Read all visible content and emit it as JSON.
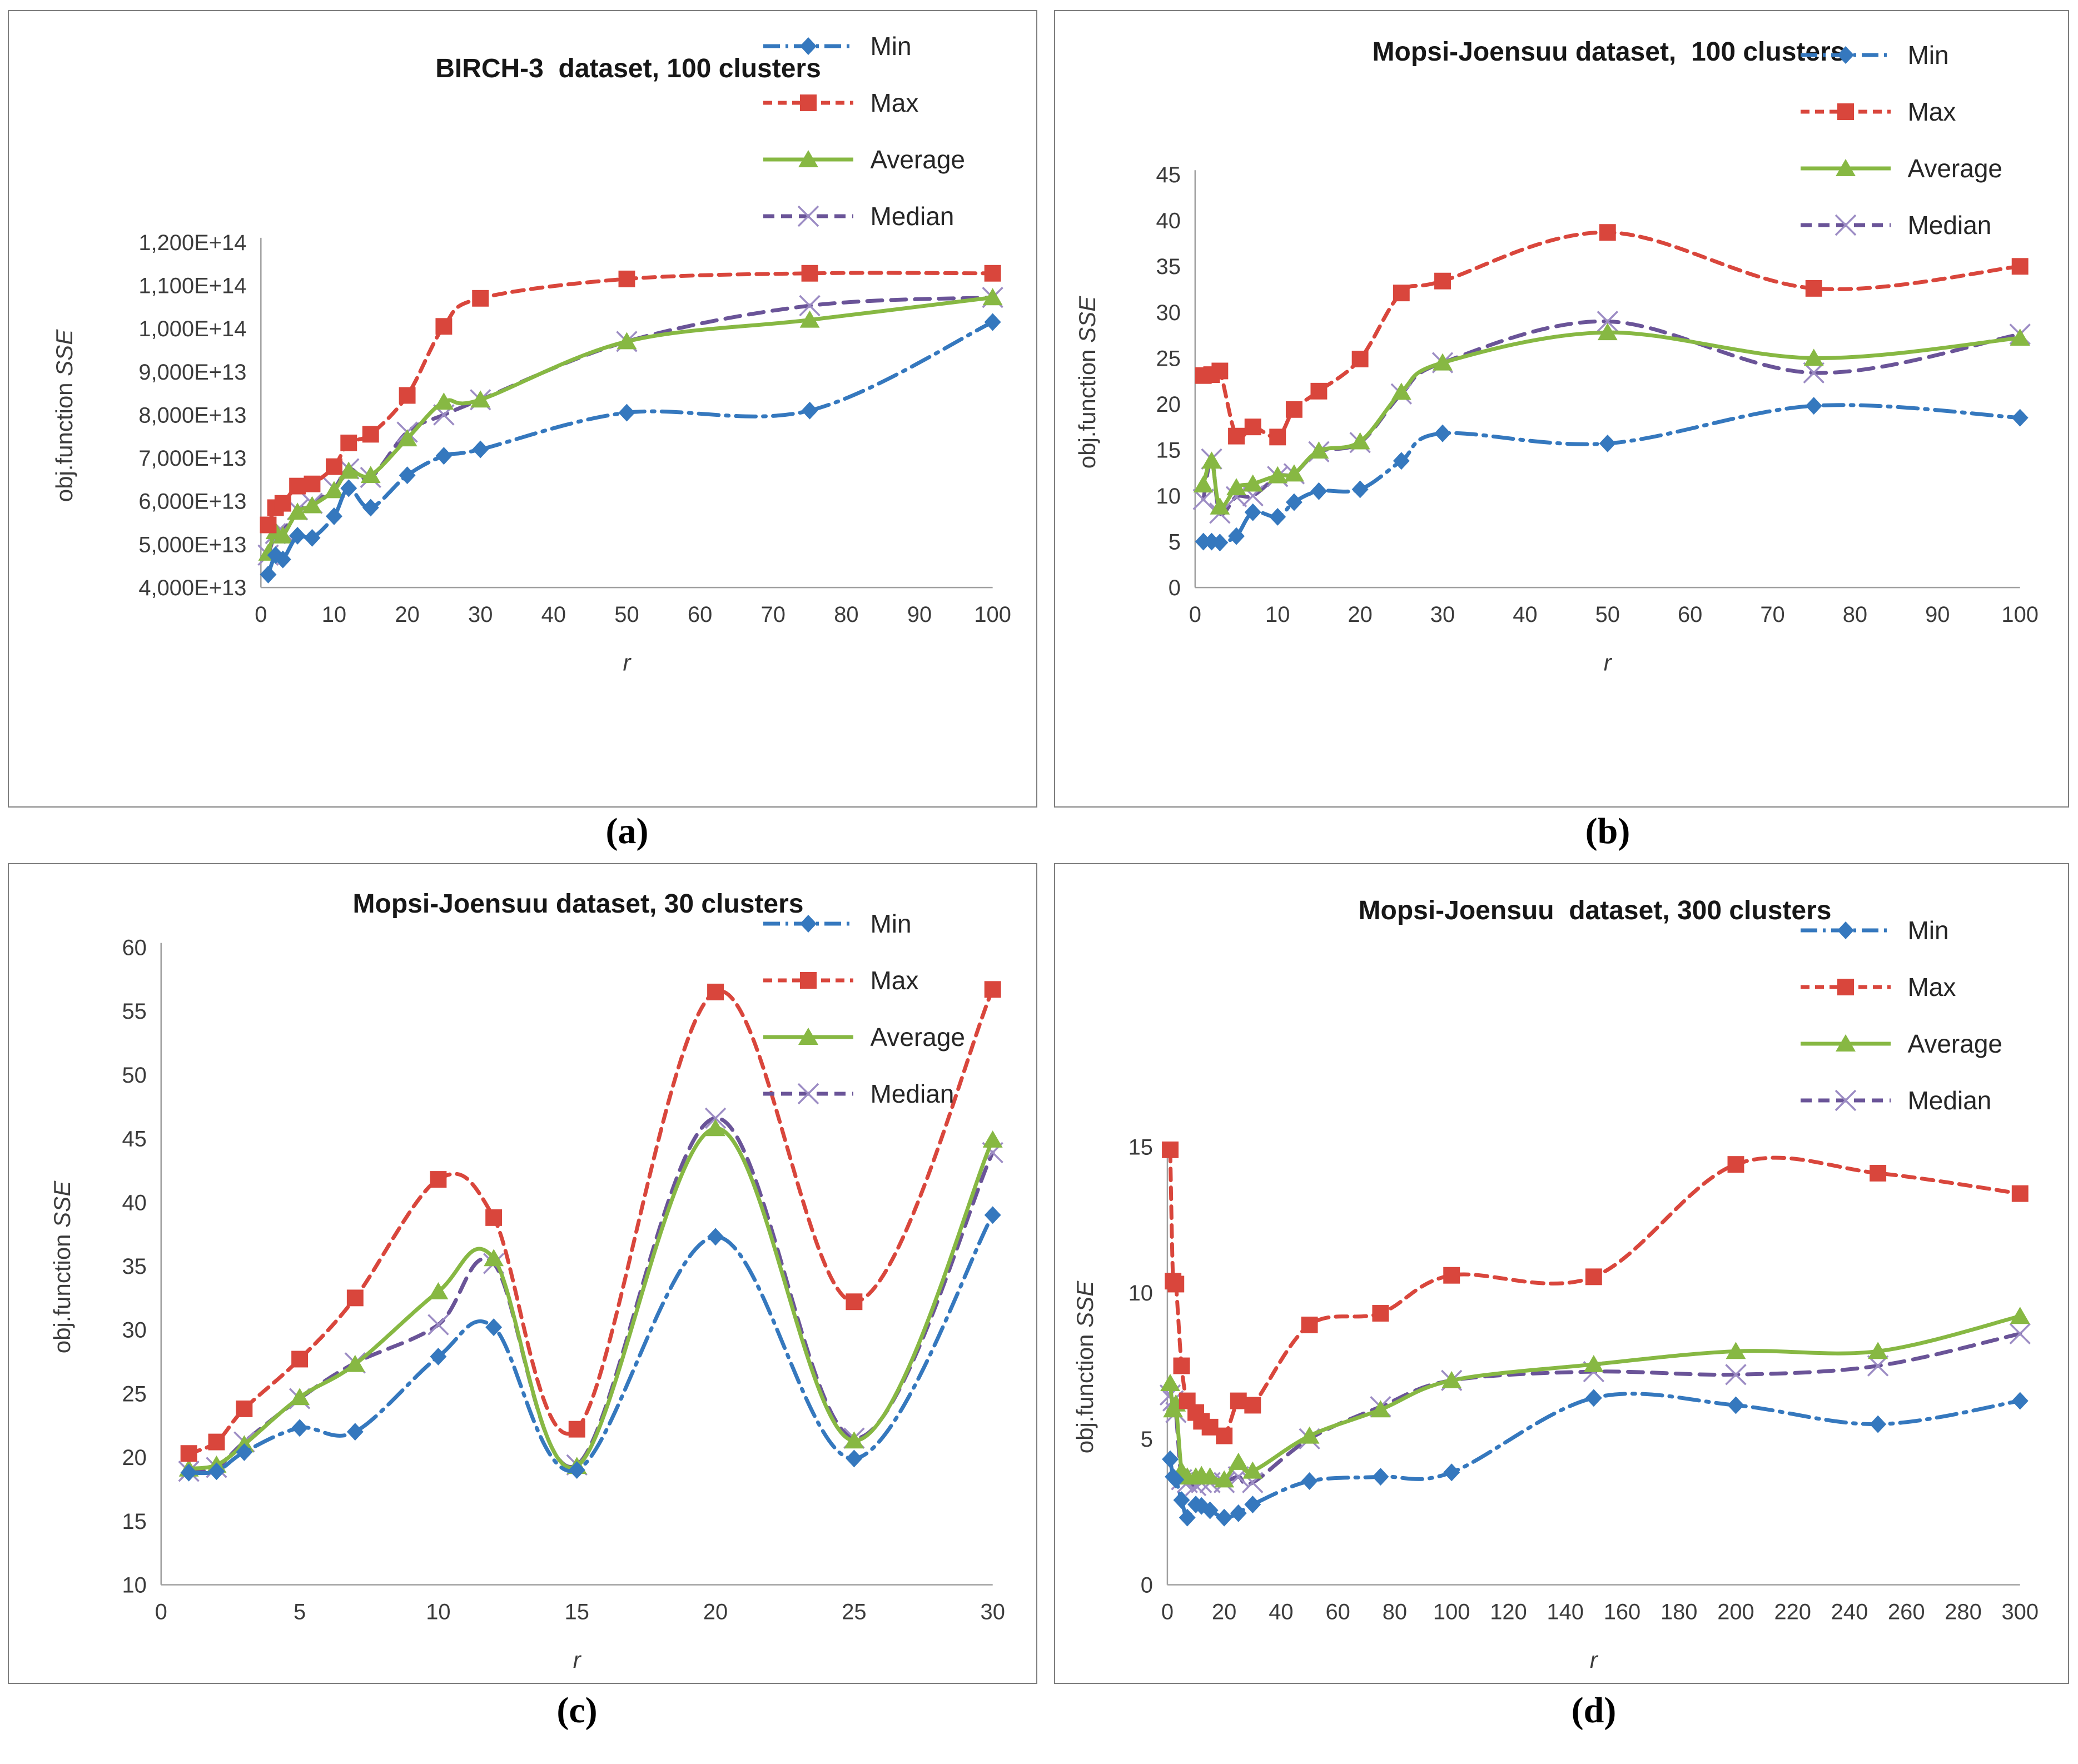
{
  "figure": {
    "background": "#ffffff",
    "panel_border_color": "#7e7e7e",
    "axis_color": "#a0a0a0",
    "tick_color": "#3c3c3c",
    "ylabel": {
      "main": "obj.function ",
      "italic": "SSE"
    },
    "xlabel": "r"
  },
  "legend": {
    "position": "top-right",
    "items": [
      {
        "label": "Min",
        "series": "Min"
      },
      {
        "label": "Max",
        "series": "Max"
      },
      {
        "label": "Average",
        "series": "Average"
      },
      {
        "label": "Median",
        "series": "Median"
      }
    ]
  },
  "series_styles": {
    "Min": {
      "color": "#3578BE",
      "marker": "diamond",
      "dash": "dashdot"
    },
    "Max": {
      "color": "#D9463C",
      "marker": "square",
      "dash": "dashed"
    },
    "Average": {
      "color": "#87B843",
      "marker": "triangle",
      "dash": "solid"
    },
    "Median": {
      "color": "#6A5498",
      "marker": "xcross",
      "dash": "dashed-med",
      "marker_color": "#9C8CC4"
    }
  },
  "chart_data": [
    {
      "id": "a",
      "type": "line",
      "caption": "(a)",
      "title": "BIRCH-3  dataset, 100 clusters",
      "xlabel": "r",
      "ylabel": "obj.function SSE",
      "grid": false,
      "legend_position": "top-right",
      "xlim": [
        0,
        100
      ],
      "x_ticks": [
        0,
        10,
        20,
        30,
        40,
        50,
        60,
        70,
        80,
        90,
        100
      ],
      "ylim": [
        40000000000000.0,
        120000000000000.0
      ],
      "y_ticks": [
        {
          "value": 40000000000000.0,
          "label": "4,000E+13"
        },
        {
          "value": 50000000000000.0,
          "label": "5,000E+13"
        },
        {
          "value": 60000000000000.0,
          "label": "6,000E+13"
        },
        {
          "value": 70000000000000.0,
          "label": "7,000E+13"
        },
        {
          "value": 80000000000000.0,
          "label": "8,000E+13"
        },
        {
          "value": 90000000000000.0,
          "label": "9,000E+13"
        },
        {
          "value": 100000000000000.0,
          "label": "1,000E+14"
        },
        {
          "value": 110000000000000.0,
          "label": "1,100E+14"
        },
        {
          "value": 120000000000000.0,
          "label": "1,200E+14"
        }
      ],
      "x": [
        1,
        2,
        3,
        5,
        7,
        10,
        12,
        15,
        20,
        25,
        30,
        50,
        75,
        100
      ],
      "series": [
        {
          "name": "Min",
          "values": [
            43000000000000.0,
            47500000000000.0,
            46500000000000.0,
            52000000000000.0,
            51500000000000.0,
            56500000000000.0,
            63000000000000.0,
            58500000000000.0,
            66000000000000.0,
            70500000000000.0,
            72000000000000.0,
            80500000000000.0,
            81000000000000.0,
            101500000000000.0
          ]
        },
        {
          "name": "Max",
          "values": [
            54500000000000.0,
            58500000000000.0,
            59500000000000.0,
            63500000000000.0,
            64000000000000.0,
            68000000000000.0,
            73500000000000.0,
            75500000000000.0,
            84500000000000.0,
            100500000000000.0,
            107000000000000.0,
            111500000000000.0,
            112800000000000.0,
            112800000000000.0
          ]
        },
        {
          "name": "Average",
          "values": [
            48000000000000.0,
            53000000000000.0,
            52000000000000.0,
            57500000000000.0,
            59000000000000.0,
            62500000000000.0,
            67000000000000.0,
            66000000000000.0,
            74500000000000.0,
            83000000000000.0,
            83500000000000.0,
            97000000000000.0,
            102000000000000.0,
            107200000000000.0
          ]
        },
        {
          "name": "Median",
          "values": [
            47500000000000.0,
            52500000000000.0,
            53000000000000.0,
            58000000000000.0,
            59500000000000.0,
            63000000000000.0,
            67500000000000.0,
            65500000000000.0,
            76000000000000.0,
            80000000000000.0,
            83500000000000.0,
            97000000000000.0,
            105300000000000.0,
            107200000000000.0
          ]
        }
      ]
    },
    {
      "id": "b",
      "type": "line",
      "caption": "(b)",
      "title": "Mopsi-Joensuu dataset,  100 clusters",
      "xlabel": "r",
      "ylabel": "obj.function SSE",
      "grid": false,
      "legend_position": "top-right",
      "xlim": [
        0,
        100
      ],
      "x_ticks": [
        0,
        10,
        20,
        30,
        40,
        50,
        60,
        70,
        80,
        90,
        100
      ],
      "ylim": [
        0,
        45
      ],
      "y_ticks": [
        {
          "value": 0,
          "label": "0"
        },
        {
          "value": 5,
          "label": "5"
        },
        {
          "value": 10,
          "label": "10"
        },
        {
          "value": 15,
          "label": "15"
        },
        {
          "value": 20,
          "label": "20"
        },
        {
          "value": 25,
          "label": "25"
        },
        {
          "value": 30,
          "label": "30"
        },
        {
          "value": 35,
          "label": "35"
        },
        {
          "value": 40,
          "label": "40"
        },
        {
          "value": 45,
          "label": "45"
        }
      ],
      "x": [
        1,
        2,
        3,
        5,
        7,
        10,
        12,
        15,
        20,
        25,
        30,
        50,
        75,
        100
      ],
      "series": [
        {
          "name": "Min",
          "values": [
            5.0,
            5.0,
            4.9,
            5.6,
            8.2,
            7.7,
            9.3,
            10.5,
            10.7,
            13.8,
            16.8,
            15.7,
            19.8,
            18.5
          ]
        },
        {
          "name": "Max",
          "values": [
            23.1,
            23.2,
            23.6,
            16.5,
            17.5,
            16.4,
            19.4,
            21.4,
            24.9,
            32.1,
            33.4,
            38.7,
            32.6,
            35.0
          ]
        },
        {
          "name": "Average",
          "values": [
            11.2,
            13.8,
            8.8,
            10.9,
            11.3,
            12.2,
            12.4,
            14.9,
            15.9,
            21.3,
            24.5,
            27.8,
            25.0,
            27.2
          ]
        },
        {
          "name": "Median",
          "values": [
            9.6,
            14.0,
            8.1,
            9.9,
            10.0,
            12.1,
            12.4,
            14.8,
            15.8,
            21.1,
            24.5,
            29.0,
            23.4,
            27.6
          ]
        }
      ]
    },
    {
      "id": "c",
      "type": "line",
      "caption": "(c)",
      "title": "Mopsi-Joensuu dataset, 30 clusters",
      "xlabel": "r",
      "ylabel": "obj.function SSE",
      "grid": false,
      "legend_position": "top-right",
      "xlim": [
        0,
        30
      ],
      "x_ticks": [
        0,
        5,
        10,
        15,
        20,
        25,
        30
      ],
      "ylim": [
        10,
        60
      ],
      "y_ticks": [
        {
          "value": 10,
          "label": "10"
        },
        {
          "value": 15,
          "label": "15"
        },
        {
          "value": 20,
          "label": "20"
        },
        {
          "value": 25,
          "label": "25"
        },
        {
          "value": 30,
          "label": "30"
        },
        {
          "value": 35,
          "label": "35"
        },
        {
          "value": 40,
          "label": "40"
        },
        {
          "value": 45,
          "label": "45"
        },
        {
          "value": 50,
          "label": "50"
        },
        {
          "value": 55,
          "label": "55"
        },
        {
          "value": 60,
          "label": "60"
        }
      ],
      "x": [
        1,
        2,
        3,
        5,
        7,
        10,
        12,
        15,
        20,
        25,
        30
      ],
      "series": [
        {
          "name": "Min",
          "values": [
            18.8,
            18.9,
            20.4,
            22.3,
            22.0,
            27.9,
            30.2,
            19.0,
            37.3,
            19.9,
            39.0
          ]
        },
        {
          "name": "Max",
          "values": [
            20.3,
            21.2,
            23.8,
            27.7,
            32.5,
            41.8,
            38.8,
            22.2,
            56.5,
            32.2,
            56.7
          ]
        },
        {
          "name": "Average",
          "values": [
            19.1,
            19.4,
            21.0,
            24.7,
            27.3,
            33.0,
            35.6,
            19.3,
            45.8,
            21.3,
            44.9
          ]
        },
        {
          "name": "Median",
          "values": [
            18.9,
            19.2,
            21.2,
            24.6,
            27.4,
            30.4,
            35.2,
            19.4,
            46.6,
            21.5,
            43.9
          ]
        }
      ]
    },
    {
      "id": "d",
      "type": "line",
      "caption": "(d)",
      "title": "Mopsi-Joensuu  dataset, 300 clusters",
      "xlabel": "r",
      "ylabel": "obj.function SSE",
      "grid": false,
      "legend_position": "top-right",
      "xlim": [
        0,
        300
      ],
      "x_ticks": [
        0,
        20,
        40,
        60,
        80,
        100,
        120,
        140,
        160,
        180,
        200,
        220,
        240,
        260,
        280,
        300
      ],
      "ylim": [
        0,
        15
      ],
      "y_ticks": [
        {
          "value": 0,
          "label": "0"
        },
        {
          "value": 5,
          "label": "5"
        },
        {
          "value": 10,
          "label": "10"
        },
        {
          "value": 15,
          "label": "15"
        }
      ],
      "x": [
        1,
        2,
        3,
        5,
        7,
        10,
        12,
        15,
        20,
        25,
        30,
        50,
        75,
        100,
        150,
        200,
        250,
        300
      ],
      "series": [
        {
          "name": "Min",
          "values": [
            4.3,
            3.7,
            3.6,
            2.9,
            2.3,
            2.75,
            2.7,
            2.55,
            2.3,
            2.45,
            2.75,
            3.55,
            3.7,
            3.85,
            6.4,
            6.15,
            5.5,
            6.3
          ]
        },
        {
          "name": "Max",
          "values": [
            14.9,
            10.4,
            10.3,
            7.5,
            6.3,
            5.9,
            5.6,
            5.4,
            5.1,
            6.3,
            6.15,
            8.9,
            9.3,
            10.6,
            10.55,
            14.4,
            14.1,
            13.4
          ]
        },
        {
          "name": "Average",
          "values": [
            6.9,
            6.0,
            6.2,
            3.9,
            3.7,
            3.7,
            3.75,
            3.7,
            3.6,
            4.2,
            3.9,
            5.1,
            6.0,
            7.0,
            7.55,
            8.0,
            8.0,
            9.2
          ]
        },
        {
          "name": "Median",
          "values": [
            6.5,
            6.3,
            5.9,
            3.6,
            3.5,
            3.4,
            3.5,
            3.5,
            3.5,
            3.7,
            3.5,
            5.0,
            6.1,
            7.0,
            7.3,
            7.2,
            7.5,
            8.6
          ]
        }
      ]
    }
  ]
}
